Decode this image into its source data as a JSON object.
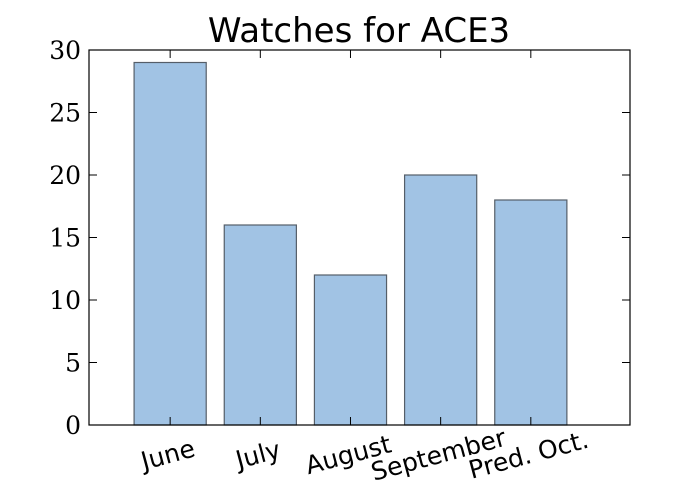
{
  "chart_data": {
    "type": "bar",
    "title": "Watches for ACE3",
    "categories": [
      "June",
      "July",
      "August",
      "September",
      "Pred. Oct."
    ],
    "values": [
      29,
      16,
      12,
      20,
      18
    ],
    "xlabel": "",
    "ylabel": "",
    "ylim": [
      0,
      30
    ],
    "yticks": [
      0,
      5,
      10,
      15,
      20,
      25,
      30
    ],
    "grid": false,
    "bar_color": "#a1c3e4",
    "bar_edge_color": "#555e68"
  }
}
